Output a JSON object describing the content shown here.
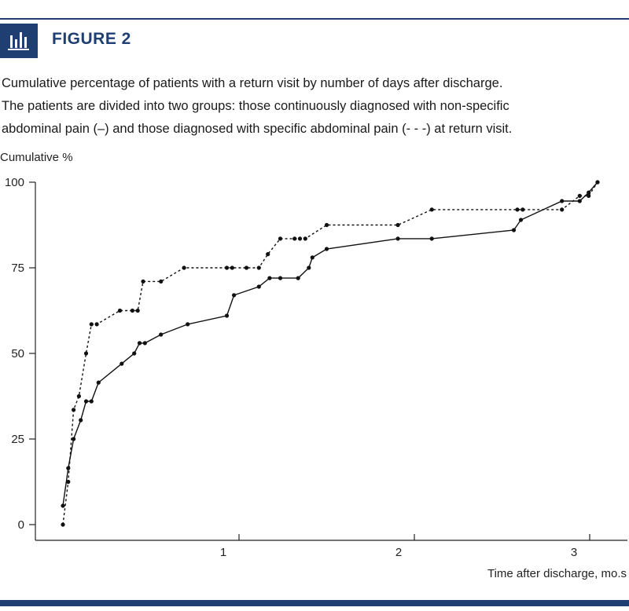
{
  "figure": {
    "label": "FIGURE 2",
    "icon": "bar-chart-icon",
    "accent_color": "#1f3f73",
    "caption_lines": [
      "Cumulative percentage of patients with a return visit by number of days after discharge.",
      "The patients are divided into two groups: those continuously diagnosed with non-specific",
      "abdominal pain (–) and those diagnosed with specific abdominal pain (- - -) at return visit."
    ]
  },
  "chart_data": {
    "type": "line",
    "ylabel": "Cumulative %",
    "xlabel": "Time after discharge, mo.s",
    "ylim": [
      0,
      100
    ],
    "xlim": [
      -0.05,
      3.05
    ],
    "yticks": [
      0,
      25,
      50,
      75,
      100
    ],
    "xticks": [
      1,
      2,
      3
    ],
    "grid": false,
    "series": [
      {
        "style": "solid",
        "x": [
          0.0,
          0.03,
          0.06,
          0.1,
          0.13,
          0.16,
          0.2,
          0.33,
          0.4,
          0.43,
          0.46,
          0.55,
          0.7,
          0.92,
          0.96,
          1.1,
          1.16,
          1.22,
          1.32,
          1.38,
          1.4,
          1.48,
          1.88,
          2.07,
          2.53,
          2.57,
          2.8,
          2.9,
          2.95,
          3.0
        ],
        "y": [
          5.5,
          16.5,
          25,
          30.5,
          36,
          36,
          41.5,
          47,
          50,
          53,
          53,
          55.5,
          58.5,
          61,
          67,
          69.5,
          72,
          72,
          72,
          75,
          78,
          80.5,
          83.5,
          83.5,
          86,
          89,
          94.5,
          94.5,
          97,
          100
        ]
      },
      {
        "style": "dashed",
        "x": [
          0.0,
          0.03,
          0.06,
          0.09,
          0.13,
          0.16,
          0.19,
          0.32,
          0.39,
          0.42,
          0.45,
          0.55,
          0.68,
          0.92,
          0.95,
          1.03,
          1.1,
          1.15,
          1.22,
          1.3,
          1.33,
          1.36,
          1.48,
          1.88,
          2.07,
          2.55,
          2.58,
          2.8,
          2.9,
          2.95,
          3.0
        ],
        "y": [
          0,
          12.5,
          33.5,
          37.5,
          50,
          58.5,
          58.5,
          62.5,
          62.5,
          62.5,
          71,
          71,
          75,
          75,
          75,
          75,
          75,
          79,
          83.5,
          83.5,
          83.5,
          83.5,
          87.5,
          87.5,
          92,
          92,
          92,
          92,
          96,
          96,
          100
        ]
      }
    ]
  }
}
